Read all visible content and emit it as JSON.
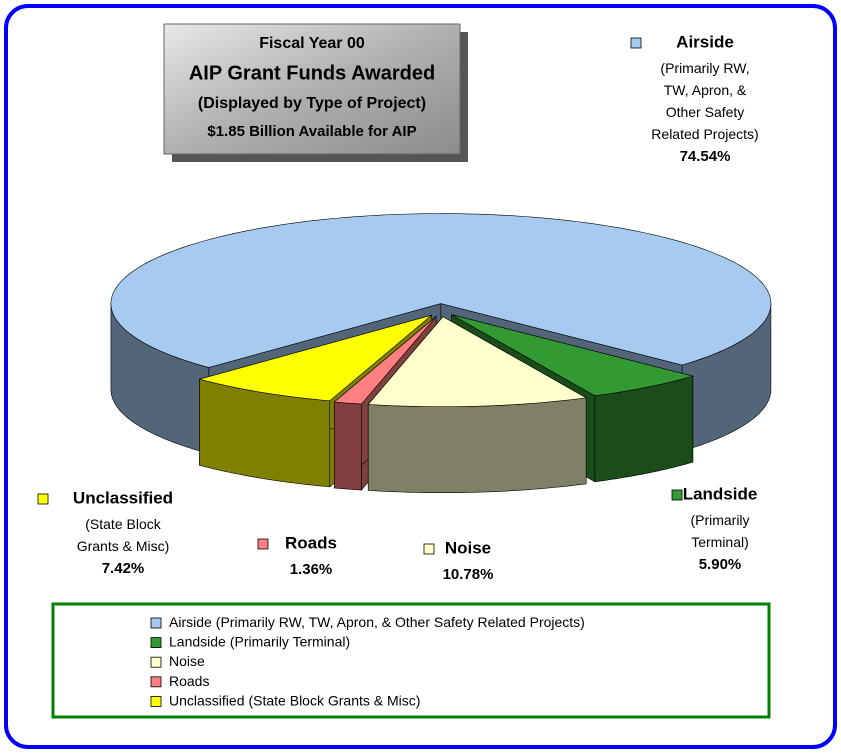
{
  "chart_data": {
    "type": "pie3d",
    "title_lines": [
      "Fiscal Year  00",
      "AIP Grant Funds Awarded",
      "(Displayed by Type of Project)",
      "$1.85 Billion Available for AIP"
    ],
    "categories": [
      "Airside",
      "Landside",
      "Noise",
      "Roads",
      "Unclassified"
    ],
    "descriptions": [
      "(Primarily RW, TW, Apron, & Other Safety Related Projects)",
      "(Primarily Terminal)",
      null,
      null,
      "(State Block Grants & Misc)"
    ],
    "values": [
      74.54,
      5.9,
      10.78,
      1.36,
      7.42
    ],
    "value_labels": [
      "74.54%",
      "5.90%",
      "10.78%",
      "1.36%",
      "7.42%"
    ],
    "colors": [
      "#a6caf0",
      "#339933",
      "#ffffcc",
      "#ff8080",
      "#ffff00"
    ],
    "legend": true
  }
}
